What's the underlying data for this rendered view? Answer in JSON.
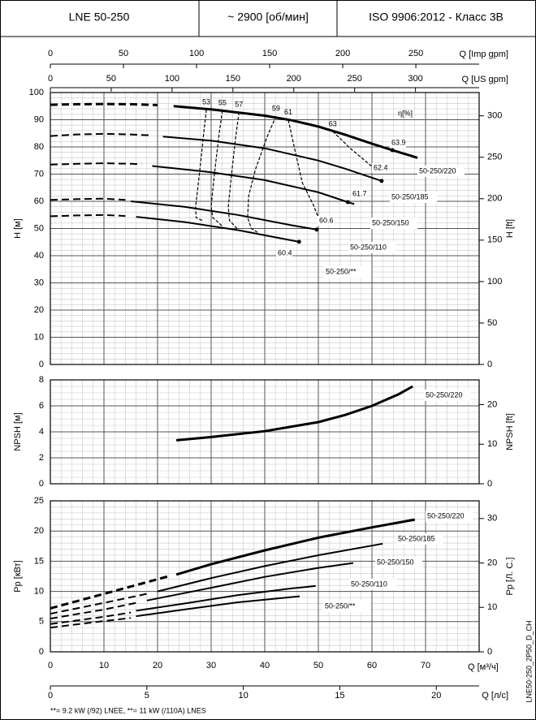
{
  "header": {
    "model": "LNE 50-250",
    "speed": "~ 2900 [об/мин]",
    "standard": "ISO 9906:2012 - Класс 3В"
  },
  "footnote": "**= 9.2 kW (/92) LNEE, **= 11 kW (/110A) LNES",
  "code": "LNE50-250_2P50_D_CH",
  "chart_data": [
    {
      "type": "line",
      "ylabel": "H [м]",
      "y2label": "H [ft]",
      "xlim": [
        0,
        80
      ],
      "xticks": [
        0,
        10,
        20,
        30,
        40,
        50,
        60,
        70
      ],
      "ylim": [
        0,
        100
      ],
      "yticks": [
        0,
        10,
        20,
        30,
        40,
        50,
        60,
        70,
        80,
        90,
        100
      ],
      "y2lim": [
        0,
        328.08
      ],
      "y2ticks": [
        0,
        50,
        100,
        150,
        200,
        250,
        300
      ],
      "x2label": "Q [Imp gpm]",
      "x2lim": [
        0,
        293.3
      ],
      "x2ticks": [
        0,
        50,
        100,
        150,
        200,
        250
      ],
      "x3label": "Q [US gpm]",
      "x3lim": [
        0,
        352.3
      ],
      "x3ticks": [
        0,
        50,
        100,
        150,
        200,
        250,
        300
      ],
      "grid": true,
      "minor_grid": {
        "x": 2,
        "y": 2
      },
      "efficiency_label": "η[%]",
      "series": [
        {
          "name": "50-250/220",
          "color": "#000000",
          "line_width": 3,
          "x_dashed": [
            0,
            5,
            10,
            15,
            20
          ],
          "values_dashed": [
            95.5,
            95.7,
            95.8,
            95.7,
            95.4
          ],
          "x": [
            23,
            30,
            40,
            45,
            50,
            55,
            60,
            63.8,
            68.5
          ],
          "values": [
            95,
            93.8,
            91.5,
            89.8,
            87.5,
            84.5,
            81.2,
            78.8,
            76
          ],
          "bep": {
            "x": 63.8,
            "y": 78.8,
            "eta": 63.9
          }
        },
        {
          "name": "50-250/185",
          "color": "#000000",
          "line_width": 2,
          "x_dashed": [
            0,
            5,
            10,
            15,
            19
          ],
          "values_dashed": [
            84,
            84.6,
            84.8,
            84.6,
            84.2
          ],
          "x": [
            21,
            30,
            40,
            50,
            55,
            61.8
          ],
          "values": [
            83.8,
            82.3,
            79.5,
            75,
            72,
            67.5
          ],
          "bep": {
            "x": 61.8,
            "y": 67.5,
            "eta": 62.4
          }
        },
        {
          "name": "50-250/150",
          "color": "#000000",
          "line_width": 2,
          "x_dashed": [
            0,
            5,
            10,
            15,
            17
          ],
          "values_dashed": [
            73.5,
            73.8,
            74,
            73.8,
            73.6
          ],
          "x": [
            19,
            30,
            40,
            50,
            55.5,
            56.7
          ],
          "values": [
            73,
            70.7,
            67.8,
            63.3,
            59.7,
            59
          ],
          "bep": {
            "x": 55.5,
            "y": 59.7,
            "eta": 61.7
          }
        },
        {
          "name": "50-250/110",
          "color": "#000000",
          "line_width": 2,
          "x_dashed": [
            0,
            5,
            10,
            14
          ],
          "values_dashed": [
            60.5,
            60.8,
            61,
            60.5
          ],
          "x": [
            15,
            25,
            35,
            45,
            49.7
          ],
          "values": [
            60,
            58,
            55,
            51.2,
            49.6
          ],
          "bep": {
            "x": 49.7,
            "y": 49.6,
            "eta": 60.6
          }
        },
        {
          "name": "50-250/**",
          "color": "#000000",
          "line_width": 2,
          "x_dashed": [
            0,
            5,
            10,
            14
          ],
          "values_dashed": [
            54.5,
            54.8,
            55,
            54.6
          ],
          "x": [
            16,
            25,
            35,
            43,
            46.4
          ],
          "values": [
            54.3,
            52.4,
            49.4,
            46.4,
            45.1
          ],
          "bep": {
            "x": 46.4,
            "y": 45.1,
            "eta": 60.4
          }
        }
      ],
      "efficiency_curves": [
        {
          "eta": 53,
          "x": [
            29.1,
            28.6,
            27.8,
            27.1,
            27.2,
            28.5
          ],
          "values": [
            93.7,
            85,
            70,
            58,
            54,
            52.8
          ]
        },
        {
          "eta": 55,
          "x": [
            32.1,
            31.5,
            30.6,
            30,
            30.3,
            32
          ],
          "values": [
            93.4,
            85,
            70,
            58,
            54,
            51
          ]
        },
        {
          "eta": 57,
          "x": [
            35.2,
            34.6,
            33.8,
            33.2,
            33.4,
            35
          ],
          "values": [
            92.8,
            84,
            70,
            58,
            53,
            49.6
          ]
        },
        {
          "eta": 59,
          "x": [
            42.1,
            40.5,
            38.3,
            37,
            36.8,
            37.5,
            38.8
          ],
          "values": [
            91.3,
            84,
            72,
            62,
            54,
            50,
            48.4
          ]
        },
        {
          "eta": 61,
          "x": [
            44.4,
            45.8,
            47,
            49.1,
            50
          ],
          "values": [
            89.9,
            77.3,
            66.9,
            58.5,
            54
          ]
        },
        {
          "eta": 63,
          "x": [
            52.7,
            56,
            60
          ],
          "values": [
            85.7,
            79.4,
            72.8
          ]
        }
      ]
    },
    {
      "type": "line",
      "ylabel": "NPSH [м]",
      "y2label": "NPSH [ft]",
      "xlim": [
        0,
        80
      ],
      "xticks": [
        0,
        10,
        20,
        30,
        40,
        50,
        60,
        70
      ],
      "ylim": [
        0,
        8
      ],
      "yticks": [
        0,
        2,
        4,
        6,
        8
      ],
      "y2lim": [
        0,
        26.25
      ],
      "y2ticks": [
        0,
        10,
        20
      ],
      "grid": true,
      "minor_grid": {
        "x": 2,
        "y": 0.5
      },
      "series": [
        {
          "name": "50-250/220",
          "color": "#000000",
          "line_width": 3,
          "x": [
            23.5,
            30,
            40,
            50,
            55,
            60,
            65,
            67.6
          ],
          "values": [
            3.35,
            3.6,
            4.05,
            4.75,
            5.3,
            6.0,
            6.9,
            7.5
          ]
        }
      ]
    },
    {
      "type": "line",
      "ylabel": "Pp [кВт]",
      "y2label": "Pp [Л. С.]",
      "xlabel": "Q [м³/ч]",
      "xlim": [
        0,
        80
      ],
      "xticks": [
        0,
        10,
        20,
        30,
        40,
        50,
        60,
        70
      ],
      "ylim": [
        0,
        25
      ],
      "yticks": [
        0,
        5,
        10,
        15,
        20,
        25
      ],
      "y2lim": [
        0,
        33.99
      ],
      "y2ticks": [
        0,
        10,
        20,
        30
      ],
      "x2label": "Q [л/с]",
      "x2lim": [
        0,
        22.22
      ],
      "x2ticks": [
        0,
        5,
        10,
        15,
        20
      ],
      "grid": true,
      "minor_grid": {
        "x": 2,
        "y": 1
      },
      "series": [
        {
          "name": "50-250/220",
          "color": "#000000",
          "line_width": 3,
          "x_dashed": [
            0,
            10,
            22
          ],
          "values_dashed": [
            7.2,
            9.6,
            12.5
          ],
          "x": [
            23.5,
            30,
            40,
            50,
            60,
            68
          ],
          "values": [
            12.8,
            14.5,
            16.8,
            18.9,
            20.6,
            21.9
          ]
        },
        {
          "name": "50-250/185",
          "color": "#000000",
          "line_width": 2,
          "x_dashed": [
            0,
            10,
            18
          ],
          "values_dashed": [
            6.3,
            8.1,
            9.6
          ],
          "x": [
            20,
            30,
            40,
            50,
            62
          ],
          "values": [
            10,
            12.2,
            14.2,
            16,
            17.9
          ]
        },
        {
          "name": "50-250/150",
          "color": "#000000",
          "line_width": 2,
          "x_dashed": [
            0,
            10,
            16
          ],
          "values_dashed": [
            5.5,
            7,
            8.1
          ],
          "x": [
            18,
            30,
            40,
            50,
            56.5
          ],
          "values": [
            8.5,
            10.6,
            12.4,
            13.9,
            14.7
          ]
        },
        {
          "name": "50-250/110",
          "color": "#000000",
          "line_width": 2,
          "x_dashed": [
            0,
            10,
            15
          ],
          "values_dashed": [
            4.6,
            5.8,
            6.5
          ],
          "x": [
            16,
            25,
            35,
            45,
            49.5
          ],
          "values": [
            6.8,
            8,
            9.4,
            10.5,
            10.9
          ]
        },
        {
          "name": "50-250/**",
          "color": "#000000",
          "line_width": 2,
          "x_dashed": [
            0,
            10,
            15
          ],
          "values_dashed": [
            4,
            5.1,
            5.6
          ],
          "x": [
            16,
            25,
            35,
            46.5
          ],
          "values": [
            5.9,
            7,
            8.2,
            9.2
          ]
        }
      ]
    }
  ]
}
